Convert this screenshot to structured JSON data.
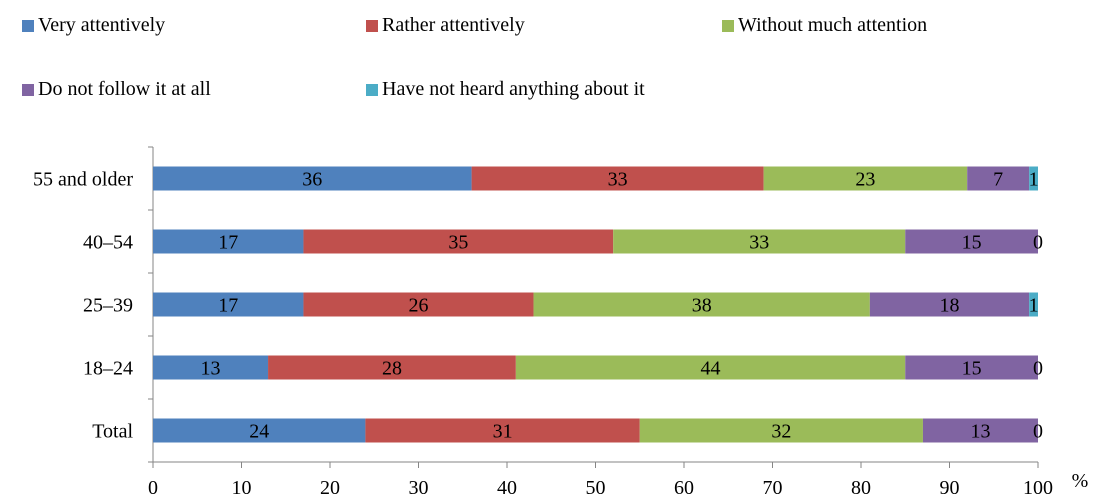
{
  "chart_data": {
    "type": "bar",
    "orientation": "horizontal",
    "stacked": true,
    "categories": [
      "55 and older",
      "40–54",
      "25–39",
      "18–24",
      "Total"
    ],
    "series": [
      {
        "name": "Very attentively",
        "color": "#4f81bd",
        "values": [
          36,
          17,
          17,
          13,
          24
        ]
      },
      {
        "name": "Rather attentively",
        "color": "#c0504d",
        "values": [
          33,
          35,
          26,
          28,
          31
        ]
      },
      {
        "name": "Without much attention",
        "color": "#9bbb59",
        "values": [
          23,
          33,
          38,
          44,
          32
        ]
      },
      {
        "name": "Do not follow it at all",
        "color": "#8064a2",
        "values": [
          7,
          15,
          18,
          15,
          13
        ]
      },
      {
        "name": "Have not heard anything about it",
        "color": "#4bacc6",
        "values": [
          1,
          0,
          1,
          0,
          0
        ]
      }
    ],
    "xlim": [
      0,
      100
    ],
    "xticks": [
      "0",
      "10",
      "20",
      "30",
      "40",
      "50",
      "60",
      "70",
      "80",
      "90",
      "100"
    ],
    "x_unit": "%",
    "legend_position": "top",
    "grid": false
  }
}
